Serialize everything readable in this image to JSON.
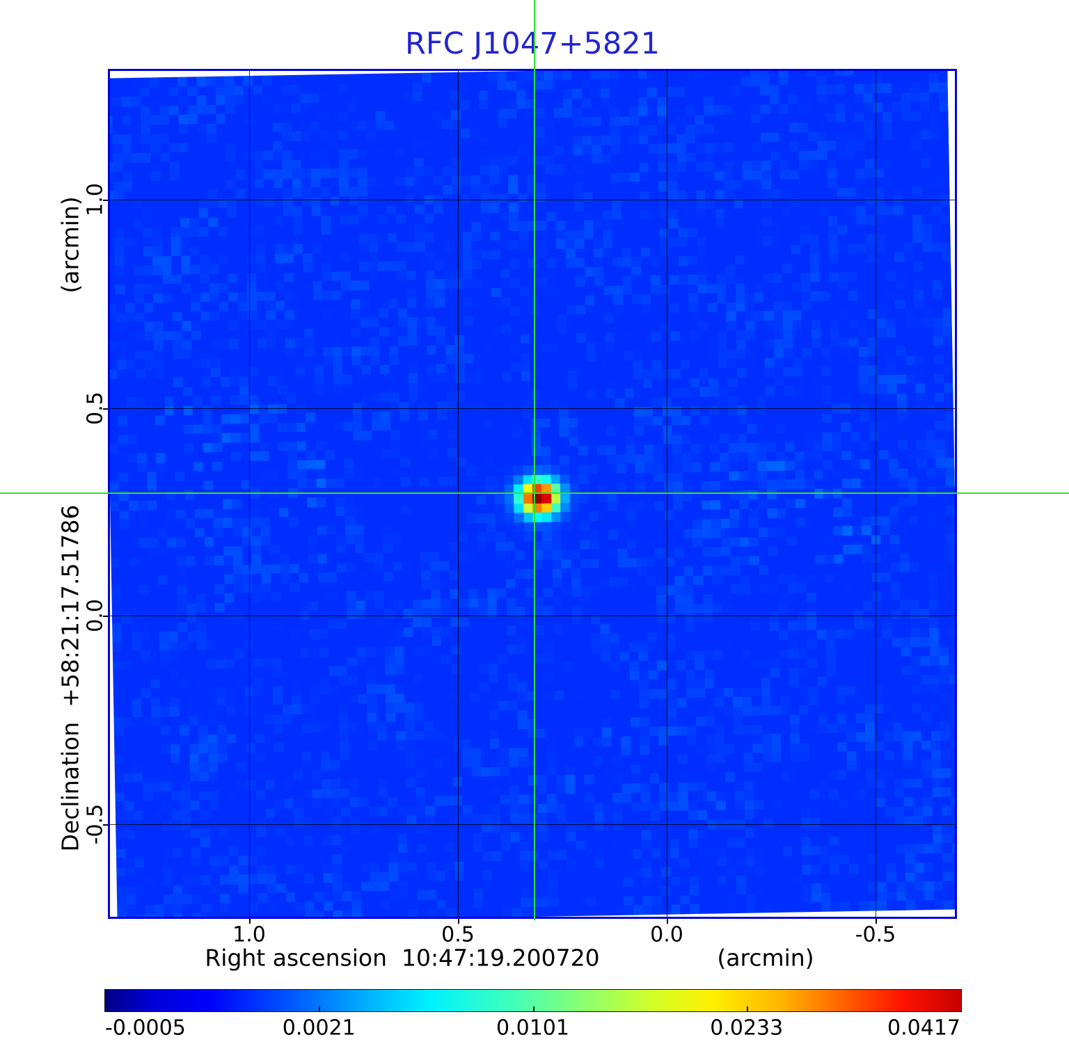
{
  "title": {
    "text": "RFC J1047+5821",
    "color": "#2323d2"
  },
  "axes": {
    "x": {
      "label": "Right ascension  10:47:19.200720",
      "unit": "(arcmin)",
      "ticks": [
        "1.0",
        "0.5",
        "0.0",
        "-0.5"
      ]
    },
    "y": {
      "label": "Declination  +58:21:17.51786",
      "unit": "(arcmin)",
      "ticks": [
        "1.0",
        "0.5",
        "0.0",
        "-0.5"
      ]
    }
  },
  "colorbar": {
    "tick_labels": [
      "-0.0005",
      "0.0021",
      "0.0101",
      "0.0233",
      "0.0417"
    ]
  },
  "crosshair": {
    "x_arcmin": 0.32,
    "y_arcmin": 0.29,
    "color": "#2ee32e"
  },
  "frame_color": "#0202dd",
  "chart_data": {
    "type": "heatmap",
    "title": "RFC J1047+5821",
    "xlabel": "Right ascension  10:47:19.200720 (arcmin)",
    "ylabel": "Declination  +58:21:17.51786 (arcmin)",
    "x_ticks": [
      1.0,
      0.5,
      0.0,
      -0.5
    ],
    "y_ticks": [
      1.0,
      0.5,
      0.0,
      -0.5
    ],
    "x_range_arcmin": [
      1.33,
      -0.69
    ],
    "y_range_arcmin": [
      -0.72,
      1.31
    ],
    "grid": true,
    "colormap": "jet",
    "colorbar_ticks": [
      -0.0005,
      0.0021,
      0.0101,
      0.0233,
      0.0417
    ],
    "colorbar_scale": "sqrt",
    "background_level_mean": 0.001,
    "peak_value": 0.0417,
    "source": {
      "x_arcmin": 0.32,
      "y_arcmin": 0.29,
      "peak": 0.0417,
      "shape": "gaussian-psf"
    },
    "crosshair_marks_source": true
  }
}
